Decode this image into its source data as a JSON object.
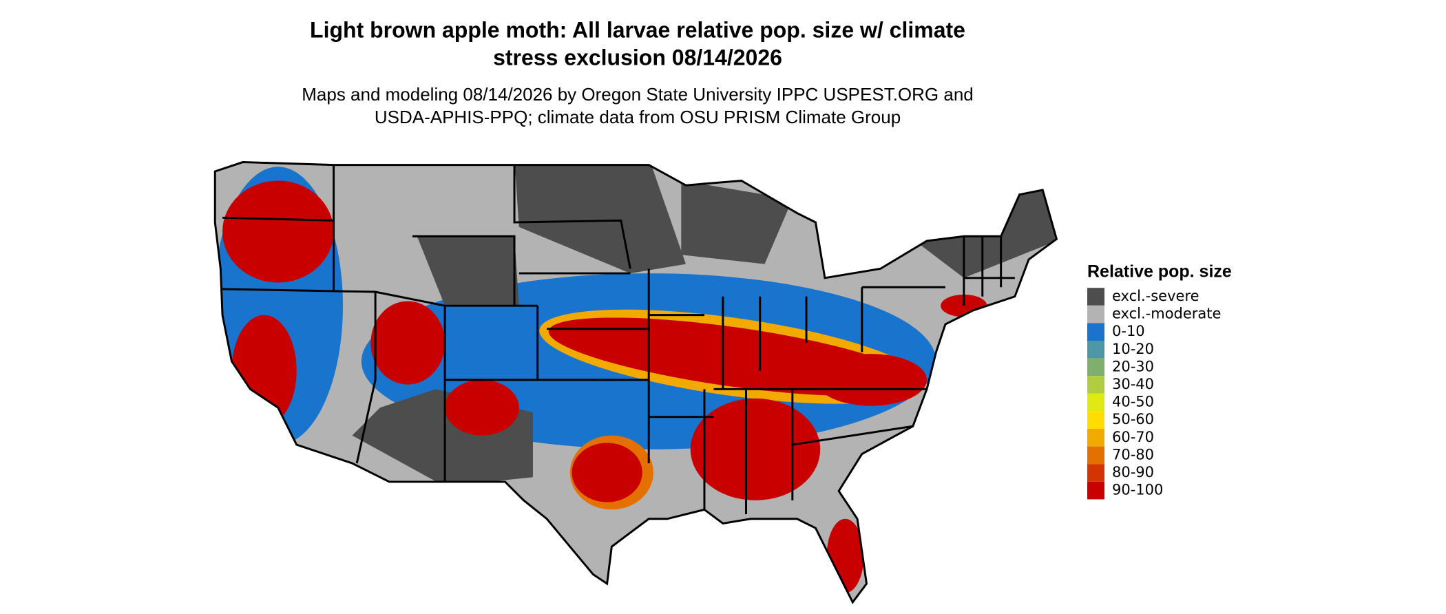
{
  "title": {
    "line1": "Light brown apple moth: All larvae relative pop. size w/ climate",
    "line2": "stress exclusion 08/14/2026"
  },
  "subtitle": {
    "line1": "Maps and modeling 08/14/2026 by Oregon State University IPPC USPEST.ORG and",
    "line2": "USDA-APHIS-PPQ; climate data from OSU PRISM Climate Group"
  },
  "legend": {
    "title": "Relative pop. size",
    "items": [
      {
        "label": "excl.-severe",
        "color": "#4d4d4d"
      },
      {
        "label": "excl.-moderate",
        "color": "#b3b3b3"
      },
      {
        "label": "0-10",
        "color": "#1874cd"
      },
      {
        "label": "10-20",
        "color": "#4d97a7"
      },
      {
        "label": "20-30",
        "color": "#7fae6e"
      },
      {
        "label": "30-40",
        "color": "#b0cd3f"
      },
      {
        "label": "40-50",
        "color": "#e0ea12"
      },
      {
        "label": "50-60",
        "color": "#ffdd00"
      },
      {
        "label": "60-70",
        "color": "#f2aa00"
      },
      {
        "label": "70-80",
        "color": "#e47000"
      },
      {
        "label": "80-90",
        "color": "#d43500"
      },
      {
        "label": "90-100",
        "color": "#c80000"
      }
    ]
  }
}
